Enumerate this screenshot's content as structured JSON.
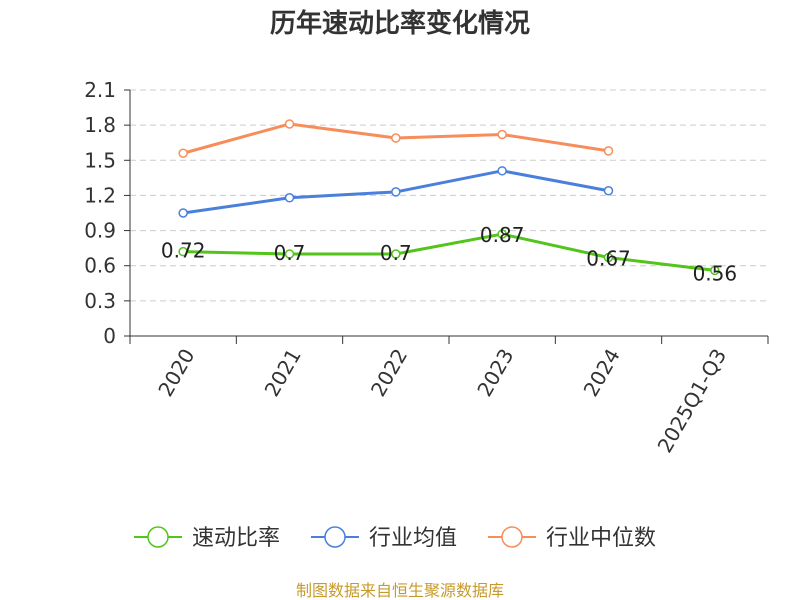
{
  "chart_data": {
    "type": "line",
    "title": "历年速动比率变化情况",
    "categories": [
      "2020",
      "2021",
      "2022",
      "2023",
      "2024",
      "2025Q1-Q3"
    ],
    "yticks": [
      "0",
      "0.3",
      "0.6",
      "0.9",
      "1.2",
      "1.5",
      "1.8",
      "2.1"
    ],
    "ylim": [
      0,
      2.1
    ],
    "grid": true,
    "legend_position": "bottom",
    "series": [
      {
        "name": "速动比率",
        "color": "#52c41a",
        "values": [
          0.72,
          0.7,
          0.7,
          0.87,
          0.67,
          0.56
        ],
        "labels": [
          "0.72",
          "0.7",
          "0.7",
          "0.87",
          "0.67",
          "0.56"
        ]
      },
      {
        "name": "行业均值",
        "color": "#4a7fdc",
        "values": [
          1.05,
          1.18,
          1.23,
          1.41,
          1.24,
          null
        ]
      },
      {
        "name": "行业中位数",
        "color": "#f68d5a",
        "values": [
          1.56,
          1.81,
          1.69,
          1.72,
          1.58,
          null
        ]
      }
    ]
  },
  "source": "制图数据来自恒生聚源数据库"
}
